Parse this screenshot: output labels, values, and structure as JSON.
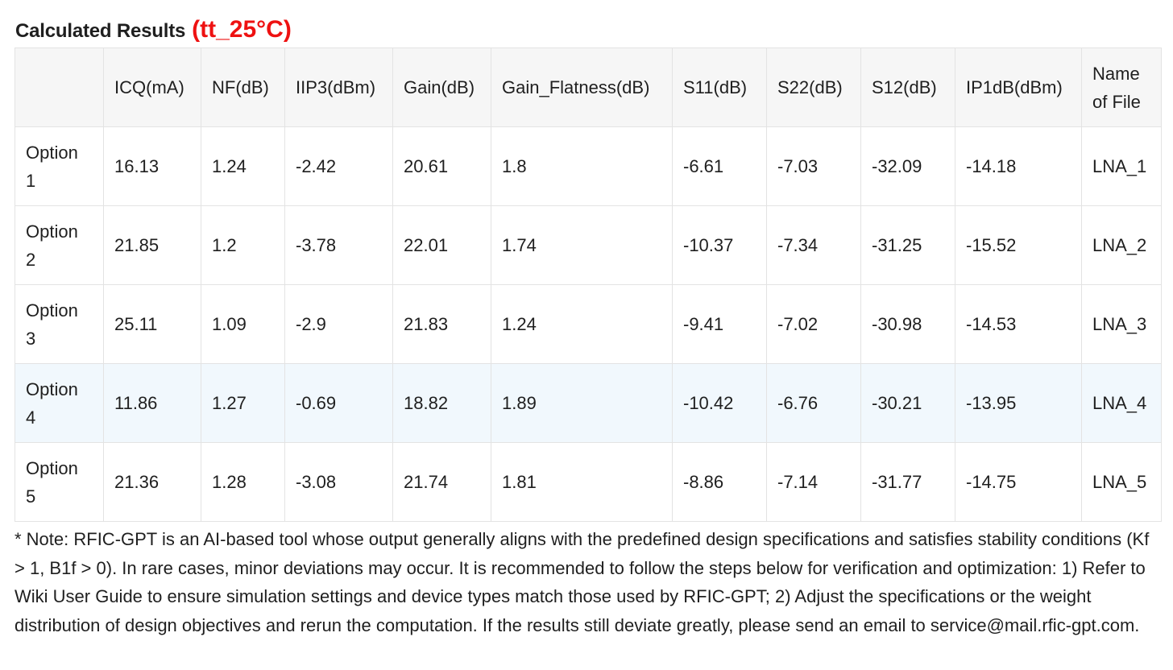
{
  "heading": {
    "title": "Calculated Results",
    "condition": "(tt_25°C)",
    "condition_color": "#ee1111"
  },
  "table": {
    "columns": [
      "",
      "ICQ(mA)",
      "NF(dB)",
      "IIP3(dBm)",
      "Gain(dB)",
      "Gain_Flatness(dB)",
      "S11(dB)",
      "S22(dB)",
      "S12(dB)",
      "IP1dB(dBm)",
      "Name of File"
    ],
    "rows": [
      [
        "Option 1",
        "16.13",
        "1.24",
        "-2.42",
        "20.61",
        "1.8",
        "-6.61",
        "-7.03",
        "-32.09",
        "-14.18",
        "LNA_1"
      ],
      [
        "Option 2",
        "21.85",
        "1.2",
        "-3.78",
        "22.01",
        "1.74",
        "-10.37",
        "-7.34",
        "-31.25",
        "-15.52",
        "LNA_2"
      ],
      [
        "Option 3",
        "25.11",
        "1.09",
        "-2.9",
        "21.83",
        "1.24",
        "-9.41",
        "-7.02",
        "-30.98",
        "-14.53",
        "LNA_3"
      ],
      [
        "Option 4",
        "11.86",
        "1.27",
        "-0.69",
        "18.82",
        "1.89",
        "-10.42",
        "-6.76",
        "-30.21",
        "-13.95",
        "LNA_4"
      ],
      [
        "Option 5",
        "21.36",
        "1.28",
        "-3.08",
        "21.74",
        "1.81",
        "-8.86",
        "-7.14",
        "-31.77",
        "-14.75",
        "LNA_5"
      ]
    ],
    "highlight_color": "#f1f8fd",
    "header_bg": "#f6f6f6"
  },
  "note": {
    "text": "* Note: RFIC-GPT is an AI-based tool whose output generally aligns with the predefined design specifications and satisfies stability conditions (Kf > 1, B1f > 0). In rare cases, minor deviations may occur. It is recommended to follow the steps below for verification and optimization: 1) Refer to Wiki User Guide to ensure simulation settings and device types match those used by RFIC-GPT; 2) Adjust the specifications or the weight distribution of design objectives and rerun the computation. If the results still deviate greatly, please send an email to service@mail.rfic-gpt.com."
  }
}
